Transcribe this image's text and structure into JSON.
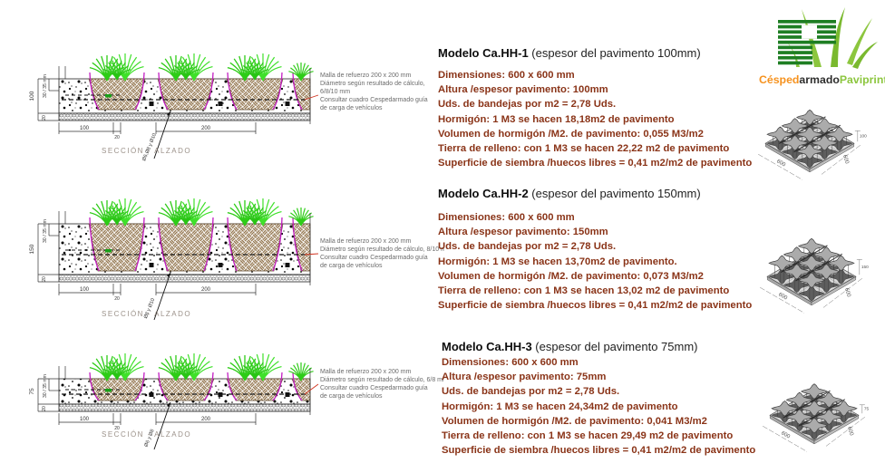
{
  "logo": {
    "wordmark_part1": "Césped",
    "wordmark_part2": "armado",
    "wordmark_part3": "Paviprint",
    "registered": "®",
    "color_orange": "#F6921E",
    "color_dark": "#2E2E2D",
    "color_green": "#8CC63E",
    "color_stripe_green": "#1E7E23"
  },
  "colors": {
    "spec_text": "#8a3418",
    "magenta_line": "#c21ec2",
    "grass_green": "#2ecc17",
    "earth_brown": "#8a6a3f",
    "red_leader": "#d0321e"
  },
  "models": [
    {
      "title": "Modelo Ca.HH-1",
      "title_suffix": "(espesor  del pavimento 100mm)",
      "specs": [
        "Dimensiones: 600 x 600 mm",
        "Altura /espesor pavimento: 100mm",
        "Uds. de bandejas por m2 = 2,78 Uds.",
        "Hormigón: 1 M3 se hacen 18,18m2 de pavimento",
        "Volumen de hormigón /M2. de pavimento: 0,055 M3/m2",
        "Tierra de relleno: con 1 M3 se hacen 22,22 m2 de pavimento",
        "Superficie de siembra /huecos libres = 0,41 m2/m2 de pavimento"
      ],
      "drawing": {
        "caption": "SECCIÓN - ALZADO",
        "dim_total": "100",
        "dim_upper": "30 / 35 mm",
        "dim_base": "20",
        "dim_b1": "100",
        "dim_b2": "20",
        "dim_b3": "200",
        "diag_label": "Ø6,Ø8 y Ø10",
        "annotation": [
          "Malla de refuerzo 200 x 200 mm",
          "Diámetro según resultado de cálculo,",
          "6/8/10 mm",
          "Consultar cuadro Cespedarmado guía",
          "de carga de vehículos"
        ]
      },
      "iso": {
        "dim_width": "600",
        "dim_depth": "600",
        "dim_height": "100"
      }
    },
    {
      "title": "Modelo Ca.HH-2",
      "title_suffix": "(espesor  del pavimento 150mm)",
      "specs": [
        "Dimensiones: 600 x 600 mm",
        "Altura /espesor pavimento: 150mm",
        "Uds. de bandejas por m2 = 2,78 Uds.",
        "Hormigón: 1 M3 se hacen 13,70m2 de pavimento.",
        "Volumen de hormigón /M2. de pavimento: 0,073 M3/m2",
        "Tierra de relleno: con 1 M3 se hacen 13,02 m2 de pavimento",
        "Superficie de siembra /huecos libres = 0,41 m2/m2 de pavimento"
      ],
      "drawing": {
        "caption": "SECCIÓN - ALZADO",
        "dim_total": "150",
        "dim_upper": "30 / 35 mm",
        "dim_base": "20",
        "dim_b1": "100",
        "dim_b2": "20",
        "dim_b3": "200",
        "diag_label": "Ø8 y Ø10",
        "annotation": [
          "Malla de refuerzo 200 x 200 mm",
          "Diámetro según resultado de cálculo, 8/10 mm",
          "Consultar cuadro Cespedarmado guía",
          "de carga de vehículos"
        ]
      },
      "iso": {
        "dim_width": "600",
        "dim_depth": "600",
        "dim_height": "150"
      }
    },
    {
      "title": "Modelo Ca.HH-3",
      "title_suffix": "(espesor  del pavimento 75mm)",
      "specs": [
        "Dimensiones: 600 x 600 mm",
        "Altura /espesor pavimento: 75mm",
        "Uds. de bandejas por m2 = 2,78 Uds.",
        "Hormigón: 1 M3 se hacen 24,34m2 de pavimento",
        "Volumen de hormigón /M2. de pavimento: 0,041 M3/m2",
        "Tierra de relleno: con 1 M3 se hacen 29,49 m2 de pavimento",
        "Superficie de siembra /huecos libres = 0,41 m2/m2 de pavimento"
      ],
      "drawing": {
        "caption": "SECCIÓN - ALZADO",
        "dim_total": "75",
        "dim_upper": "30 / 35 mm",
        "dim_base": "20",
        "dim_b1": "100",
        "dim_b2": "20",
        "dim_b3": "200",
        "diag_label": "Ø6 y Ø8",
        "annotation": [
          "Malla de refuerzo 200 x 200 mm",
          "Diámetro según resultado de cálculo, 6/8 mm",
          "Consultar cuadro Cespedarmado guía",
          "de carga de vehículos"
        ]
      },
      "iso": {
        "dim_width": "600",
        "dim_depth": "600",
        "dim_height": "75"
      }
    }
  ]
}
